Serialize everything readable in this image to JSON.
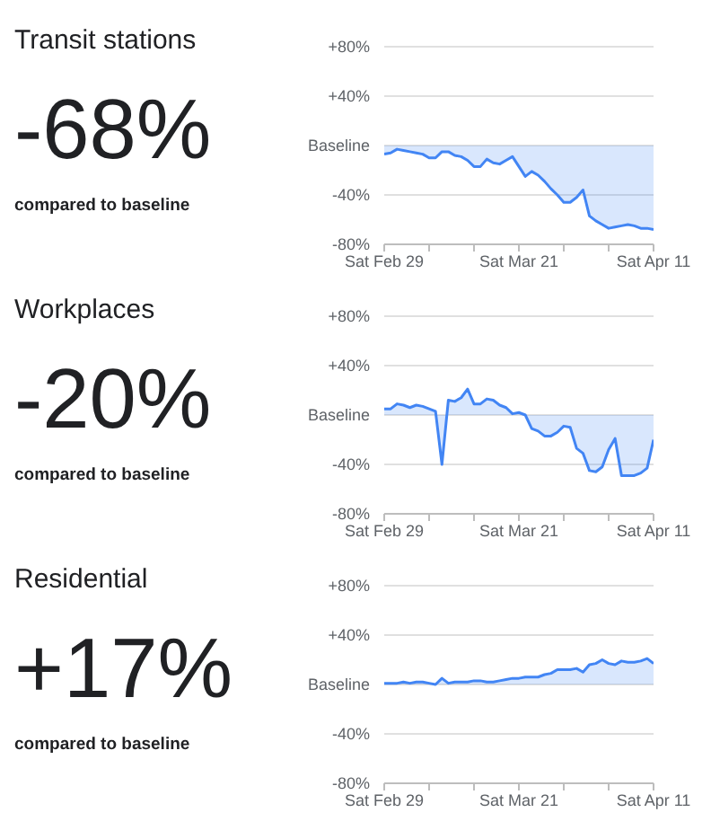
{
  "chart_data": [
    {
      "type": "area",
      "title": "Transit stations",
      "annotations": [
        "-68%",
        "compared to baseline"
      ],
      "color": "#4285f4",
      "grid": "y",
      "x": [
        "--02-29",
        "--03-01",
        "--03-02",
        "--03-03",
        "--03-04",
        "--03-05",
        "--03-06",
        "--03-07",
        "--03-08",
        "--03-09",
        "--03-10",
        "--03-11",
        "--03-12",
        "--03-13",
        "--03-14",
        "--03-15",
        "--03-16",
        "--03-17",
        "--03-18",
        "--03-19",
        "--03-20",
        "--03-21",
        "--03-22",
        "--03-23",
        "--03-24",
        "--03-25",
        "--03-26",
        "--03-27",
        "--03-28",
        "--03-29",
        "--03-30",
        "--03-31",
        "--04-01",
        "--04-02",
        "--04-03",
        "--04-04",
        "--04-05",
        "--04-06",
        "--04-07",
        "--04-08",
        "--04-09",
        "--04-10",
        "--04-11"
      ],
      "values": [
        -7,
        -6,
        -3,
        -4,
        -5,
        -6,
        -7,
        -10,
        -10,
        -5,
        -5,
        -8,
        -9,
        -12,
        -17,
        -17,
        -11,
        -14,
        -15,
        -12,
        -9,
        -17,
        -25,
        -21,
        -24,
        -29,
        -35,
        -40,
        -46,
        -46,
        -42,
        -36,
        -57,
        -61,
        -64,
        -67,
        -66,
        -65,
        -64,
        -65,
        -67,
        -67,
        -68
      ],
      "xlim": [
        "--02-29",
        "--04-11"
      ],
      "xticks": [
        {
          "value": "--02-29",
          "label": "Sat Feb 29"
        },
        {
          "value": "--03-07",
          "label": null
        },
        {
          "value": "--03-14",
          "label": null
        },
        {
          "value": "--03-21",
          "label": "Sat Mar 21"
        },
        {
          "value": "--03-28",
          "label": null
        },
        {
          "value": "--04-04",
          "label": null
        },
        {
          "value": "--04-11",
          "label": "Sat Apr 11"
        }
      ],
      "ylim": [
        -80,
        80
      ],
      "yticks": [
        {
          "value": -80,
          "label": "-80%"
        },
        {
          "value": -40,
          "label": "-40%"
        },
        {
          "value": 0,
          "label": "Baseline"
        },
        {
          "value": 40,
          "label": "+40%"
        },
        {
          "value": 80,
          "label": "+80%"
        }
      ]
    },
    {
      "type": "area",
      "title": "Workplaces",
      "annotations": [
        "-20%",
        "compared to baseline"
      ],
      "color": "#4285f4",
      "grid": "y",
      "x": [
        "--02-29",
        "--03-01",
        "--03-02",
        "--03-03",
        "--03-04",
        "--03-05",
        "--03-06",
        "--03-07",
        "--03-08",
        "--03-09",
        "--03-10",
        "--03-11",
        "--03-12",
        "--03-13",
        "--03-14",
        "--03-15",
        "--03-16",
        "--03-17",
        "--03-18",
        "--03-19",
        "--03-20",
        "--03-21",
        "--03-22",
        "--03-23",
        "--03-24",
        "--03-25",
        "--03-26",
        "--03-27",
        "--03-28",
        "--03-29",
        "--03-30",
        "--03-31",
        "--04-01",
        "--04-02",
        "--04-03",
        "--04-04",
        "--04-05",
        "--04-06",
        "--04-07",
        "--04-08",
        "--04-09",
        "--04-10",
        "--04-11"
      ],
      "values": [
        5,
        5,
        9,
        8,
        6,
        8,
        7,
        5,
        3,
        -40,
        12,
        11,
        14,
        21,
        9,
        9,
        13,
        12,
        8,
        6,
        1,
        2,
        0,
        -11,
        -13,
        -17,
        -17,
        -14,
        -9,
        -10,
        -27,
        -31,
        -45,
        -46,
        -42,
        -28,
        -19,
        -49,
        -49,
        -49,
        -47,
        -43,
        -20
      ],
      "xlim": [
        "--02-29",
        "--04-11"
      ],
      "xticks": [
        {
          "value": "--02-29",
          "label": "Sat Feb 29"
        },
        {
          "value": "--03-07",
          "label": null
        },
        {
          "value": "--03-14",
          "label": null
        },
        {
          "value": "--03-21",
          "label": "Sat Mar 21"
        },
        {
          "value": "--03-28",
          "label": null
        },
        {
          "value": "--04-04",
          "label": null
        },
        {
          "value": "--04-11",
          "label": "Sat Apr 11"
        }
      ],
      "ylim": [
        -80,
        80
      ],
      "yticks": [
        {
          "value": -80,
          "label": "-80%"
        },
        {
          "value": -40,
          "label": "-40%"
        },
        {
          "value": 0,
          "label": "Baseline"
        },
        {
          "value": 40,
          "label": "+40%"
        },
        {
          "value": 80,
          "label": "+80%"
        }
      ]
    },
    {
      "type": "area",
      "title": "Residential",
      "annotations": [
        "+17%",
        "compared to baseline"
      ],
      "color": "#4285f4",
      "grid": "y",
      "x": [
        "--02-29",
        "--03-01",
        "--03-02",
        "--03-03",
        "--03-04",
        "--03-05",
        "--03-06",
        "--03-07",
        "--03-08",
        "--03-09",
        "--03-10",
        "--03-11",
        "--03-12",
        "--03-13",
        "--03-14",
        "--03-15",
        "--03-16",
        "--03-17",
        "--03-18",
        "--03-19",
        "--03-20",
        "--03-21",
        "--03-22",
        "--03-23",
        "--03-24",
        "--03-25",
        "--03-26",
        "--03-27",
        "--03-28",
        "--03-29",
        "--03-30",
        "--03-31",
        "--04-01",
        "--04-02",
        "--04-03",
        "--04-04",
        "--04-05",
        "--04-06",
        "--04-07",
        "--04-08",
        "--04-09",
        "--04-10",
        "--04-11"
      ],
      "values": [
        1,
        1,
        1,
        2,
        1,
        2,
        2,
        1,
        0,
        5,
        1,
        2,
        2,
        2,
        3,
        3,
        2,
        2,
        3,
        4,
        5,
        5,
        6,
        6,
        6,
        8,
        9,
        12,
        12,
        12,
        13,
        10,
        16,
        17,
        20,
        17,
        16,
        19,
        18,
        18,
        19,
        21,
        17
      ],
      "xlim": [
        "--02-29",
        "--04-11"
      ],
      "xticks": [
        {
          "value": "--02-29",
          "label": "Sat Feb 29"
        },
        {
          "value": "--03-07",
          "label": null
        },
        {
          "value": "--03-14",
          "label": null
        },
        {
          "value": "--03-21",
          "label": "Sat Mar 21"
        },
        {
          "value": "--03-28",
          "label": null
        },
        {
          "value": "--04-04",
          "label": null
        },
        {
          "value": "--04-11",
          "label": "Sat Apr 11"
        }
      ],
      "ylim": [
        -80,
        80
      ],
      "yticks": [
        {
          "value": -80,
          "label": "-80%"
        },
        {
          "value": -40,
          "label": "-40%"
        },
        {
          "value": 0,
          "label": "Baseline"
        },
        {
          "value": 40,
          "label": "+40%"
        },
        {
          "value": 80,
          "label": "+80%"
        }
      ]
    }
  ]
}
